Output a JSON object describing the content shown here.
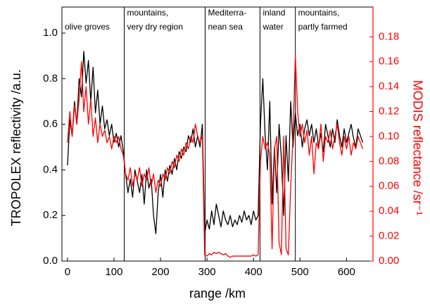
{
  "chart_data": {
    "type": "line",
    "xlabel": "range /km",
    "ylabel": "TROPOLEX reflectivity /a.u.",
    "y2label": "MODIS reflectance /sr⁻¹",
    "xlim": [
      -12,
      657
    ],
    "ylim": [
      0,
      1
    ],
    "y2lim": [
      0,
      0.183
    ],
    "xticks": [
      0,
      100,
      200,
      300,
      400,
      500,
      600
    ],
    "yticks": [
      {
        "value": 0,
        "label": "0.0"
      },
      0.2,
      0.4,
      0.6,
      0.8,
      {
        "value": 1,
        "label": "1.0"
      }
    ],
    "y2ticks": [
      {
        "value": 0,
        "label": "0.00"
      },
      {
        "value": 0.02,
        "label": "0.02"
      },
      {
        "value": 0.04,
        "label": "0.04"
      },
      {
        "value": 0.06,
        "label": "0.06"
      },
      {
        "value": 0.08,
        "label": "0.08"
      },
      {
        "value": 0.1,
        "label": "0.10"
      },
      {
        "value": 0.12,
        "label": "0.12"
      },
      {
        "value": 0.14,
        "label": "0.14"
      },
      {
        "value": 0.16,
        "label": "0.16"
      },
      {
        "value": 0.18,
        "label": "0.18"
      }
    ],
    "region_boundaries": [
      122,
      296,
      414,
      490
    ],
    "regions": [
      {
        "label": [
          "olive groves"
        ]
      },
      {
        "label": [
          "mountains,",
          "very dry region"
        ]
      },
      {
        "label": [
          "Mediterra-",
          "nean sea"
        ]
      },
      {
        "label": [
          "inland",
          "water"
        ]
      },
      {
        "label": [
          "mountains,",
          "partly farmed"
        ]
      }
    ],
    "x": [
      0,
      5,
      10,
      15,
      20,
      25,
      30,
      35,
      40,
      45,
      50,
      55,
      60,
      65,
      70,
      75,
      80,
      85,
      90,
      95,
      100,
      105,
      110,
      115,
      120,
      125,
      130,
      135,
      140,
      145,
      150,
      155,
      160,
      165,
      170,
      175,
      180,
      185,
      190,
      195,
      200,
      205,
      210,
      215,
      220,
      225,
      230,
      235,
      240,
      245,
      250,
      255,
      260,
      265,
      270,
      275,
      280,
      285,
      290,
      295,
      300,
      305,
      310,
      315,
      320,
      325,
      330,
      335,
      340,
      345,
      350,
      355,
      360,
      365,
      370,
      375,
      380,
      385,
      390,
      395,
      400,
      405,
      410,
      415,
      420,
      425,
      430,
      435,
      440,
      445,
      450,
      455,
      460,
      465,
      470,
      475,
      480,
      485,
      490,
      495,
      500,
      505,
      510,
      515,
      520,
      525,
      530,
      535,
      540,
      545,
      550,
      555,
      560,
      565,
      570,
      575,
      580,
      585,
      590,
      595,
      600,
      605,
      610,
      615,
      620,
      625,
      630,
      635
    ],
    "series": [
      {
        "color": "#000000",
        "values": [
          0.42,
          0.62,
          0.55,
          0.7,
          0.6,
          0.8,
          0.72,
          0.92,
          0.78,
          0.88,
          0.7,
          0.85,
          0.65,
          0.75,
          0.6,
          0.68,
          0.58,
          0.62,
          0.55,
          0.6,
          0.52,
          0.56,
          0.5,
          0.55,
          0.48,
          0.38,
          0.3,
          0.36,
          0.28,
          0.4,
          0.35,
          0.3,
          0.38,
          0.25,
          0.4,
          0.32,
          0.36,
          0.2,
          0.12,
          0.3,
          0.38,
          0.28,
          0.4,
          0.35,
          0.42,
          0.38,
          0.45,
          0.4,
          0.48,
          0.45,
          0.5,
          0.48,
          0.55,
          0.52,
          0.58,
          0.5,
          0.55,
          0.5,
          0.6,
          0.12,
          0.18,
          0.14,
          0.22,
          0.16,
          0.25,
          0.2,
          0.15,
          0.22,
          0.18,
          0.16,
          0.2,
          0.15,
          0.18,
          0.16,
          0.2,
          0.17,
          0.22,
          0.18,
          0.2,
          0.16,
          0.22,
          0.18,
          0.2,
          0.6,
          0.8,
          0.55,
          0.4,
          0.7,
          0.25,
          0.5,
          0.3,
          0.6,
          0.45,
          0.2,
          0.55,
          0.35,
          0.7,
          0.5,
          0.65,
          0.55,
          0.6,
          0.5,
          0.58,
          0.62,
          0.55,
          0.6,
          0.52,
          0.58,
          0.5,
          0.56,
          0.48,
          0.6,
          0.55,
          0.5,
          0.58,
          0.52,
          0.62,
          0.55,
          0.5,
          0.58,
          0.52,
          0.56,
          0.6,
          0.54,
          0.5,
          0.58,
          0.55,
          0.52
        ]
      },
      {
        "color": "#ff0000",
        "axis": "y2",
        "values": [
          0.095,
          0.12,
          0.1,
          0.125,
          0.11,
          0.13,
          0.16,
          0.12,
          0.14,
          0.11,
          0.13,
          0.1,
          0.115,
          0.095,
          0.11,
          0.1,
          0.105,
          0.095,
          0.1,
          0.09,
          0.1,
          0.095,
          0.1,
          0.09,
          0.085,
          0.07,
          0.065,
          0.075,
          0.06,
          0.07,
          0.065,
          0.075,
          0.06,
          0.07,
          0.065,
          0.075,
          0.06,
          0.07,
          0.055,
          0.065,
          0.06,
          0.07,
          0.065,
          0.075,
          0.07,
          0.08,
          0.075,
          0.085,
          0.08,
          0.09,
          0.085,
          0.095,
          0.09,
          0.1,
          0.095,
          0.11,
          0.1,
          0.095,
          0.1,
          0.005,
          0.004,
          0.006,
          0.005,
          0.007,
          0.006,
          0.007,
          0.006,
          0.005,
          0.006,
          0.004,
          0.003,
          0.004,
          0.004,
          0.004,
          0.004,
          0.004,
          0.004,
          0.004,
          0.004,
          0.004,
          0.005,
          0.004,
          0.005,
          0.08,
          0.1,
          0.09,
          0.095,
          0.085,
          0.01,
          0.09,
          0.1,
          0.015,
          0.005,
          0.1,
          0.01,
          0.005,
          0.06,
          0.1,
          0.165,
          0.12,
          0.1,
          0.11,
          0.095,
          0.105,
          0.085,
          0.1,
          0.07,
          0.095,
          0.09,
          0.11,
          0.08,
          0.1,
          0.095,
          0.105,
          0.09,
          0.1,
          0.11,
          0.095,
          0.085,
          0.1,
          0.09,
          0.1,
          0.085,
          0.095,
          0.09,
          0.1,
          0.095,
          0.09
        ]
      }
    ]
  }
}
